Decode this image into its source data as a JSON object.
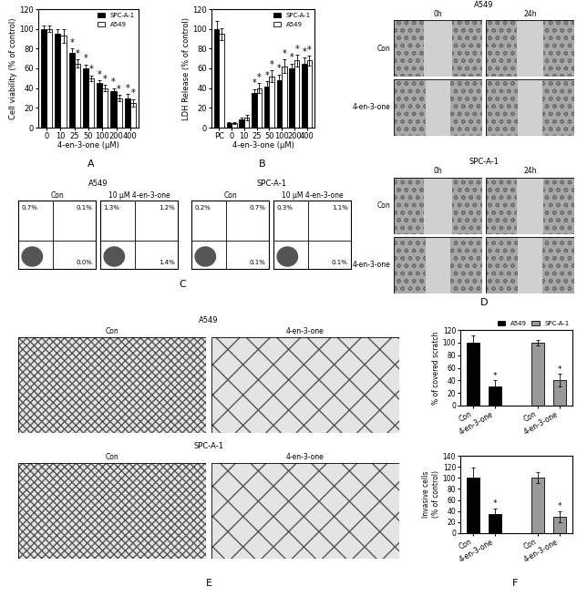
{
  "chart_data": [
    {
      "type": "bar",
      "panel_label": "A",
      "ylabel": "Cell viability (% of control)",
      "xlabel": "4-en-3-one (μM)",
      "categories": [
        "0",
        "10",
        "25",
        "50",
        "100",
        "200",
        "400"
      ],
      "ylim": [
        0,
        120
      ],
      "yticks": [
        0,
        20,
        40,
        60,
        80,
        100,
        120
      ],
      "legend": "upper right",
      "series": [
        {
          "name": "SPC-A-1",
          "color": "#000000",
          "values": [
            100,
            95,
            76,
            60,
            45,
            37,
            30
          ],
          "errors": [
            3,
            5,
            4,
            4,
            3,
            3,
            4
          ],
          "annotations": [
            null,
            null,
            "*",
            "*",
            "*",
            "*",
            "*"
          ]
        },
        {
          "name": "A549",
          "color": "#ffffff",
          "values": [
            100,
            93,
            65,
            50,
            40,
            30,
            25
          ],
          "errors": [
            3,
            7,
            4,
            3,
            3,
            3,
            4
          ],
          "annotations": [
            null,
            null,
            "*",
            "*",
            "*",
            "*",
            "*"
          ]
        }
      ]
    },
    {
      "type": "bar",
      "panel_label": "B",
      "ylabel": "LDH Release (% of control)",
      "xlabel": "4-en-3-one (μM)",
      "categories": [
        "PC",
        "0",
        "10",
        "25",
        "50",
        "100",
        "200",
        "400"
      ],
      "ylim": [
        0,
        120
      ],
      "yticks": [
        0,
        20,
        40,
        60,
        80,
        100,
        120
      ],
      "legend": "upper right",
      "series": [
        {
          "name": "SPC-A-1",
          "color": "#000000",
          "values": [
            100,
            5,
            8,
            35,
            42,
            48,
            60,
            65
          ],
          "errors": [
            8,
            1,
            2,
            4,
            5,
            6,
            5,
            6
          ],
          "annotations": [
            null,
            null,
            null,
            "*",
            "*",
            "*",
            "*",
            "*"
          ]
        },
        {
          "name": "A549",
          "color": "#ffffff",
          "values": [
            95,
            5,
            10,
            40,
            52,
            62,
            68,
            68
          ],
          "errors": [
            6,
            1,
            3,
            5,
            6,
            7,
            6,
            5
          ],
          "annotations": [
            null,
            null,
            null,
            "*",
            "*",
            "*",
            "*",
            "*"
          ]
        }
      ]
    },
    {
      "type": "bar",
      "panel_label": "F",
      "ylabel": "% of covered scratch",
      "categories": [
        "Con",
        "4-en-3-one",
        null,
        "Con",
        "4-en-3-one"
      ],
      "ylim": [
        0,
        120
      ],
      "yticks": [
        0,
        20,
        40,
        60,
        80,
        100,
        120
      ],
      "legend": "upper right",
      "series": [
        {
          "name": "A549",
          "color": "#000000",
          "values": [
            100,
            30,
            null,
            null,
            null
          ],
          "errors": [
            12,
            10,
            null,
            null,
            null
          ],
          "annotations": [
            null,
            "*",
            null,
            null,
            null
          ]
        },
        {
          "name": "SPC-A-1",
          "color": "#999999",
          "values": [
            null,
            null,
            null,
            100,
            40
          ],
          "errors": [
            null,
            null,
            null,
            4,
            10
          ],
          "annotations": [
            null,
            null,
            null,
            null,
            "*"
          ]
        }
      ]
    },
    {
      "type": "bar",
      "ylabel": "Invasive cells\n(% of control)",
      "categories": [
        "Con",
        "4-en-3-one",
        null,
        "Con",
        "4-en-3-one"
      ],
      "ylim": [
        0,
        140
      ],
      "yticks": [
        0,
        20,
        40,
        60,
        80,
        100,
        120,
        140
      ],
      "values": [
        100,
        35,
        null,
        100,
        30
      ],
      "colors": [
        "#000000",
        "#000000",
        "#999999",
        "#999999",
        "#999999"
      ],
      "errors": [
        18,
        10,
        null,
        10,
        10
      ],
      "annotations": [
        null,
        "*",
        null,
        null,
        "*"
      ]
    }
  ],
  "flow_cytometry": {
    "panel_label": "C",
    "groups": [
      {
        "title": "A549",
        "plots": [
          {
            "title": "Con",
            "upper_left": "0.7%",
            "upper_right": "0.1%",
            "lower_right": "0.0%"
          },
          {
            "title": "10 μM 4-en-3-one",
            "upper_left": "1.3%",
            "upper_right": "1.2%",
            "lower_right": "1.4%"
          }
        ]
      },
      {
        "title": "SPC-A-1",
        "plots": [
          {
            "title": "Con",
            "upper_left": "0.2%",
            "upper_right": "0.7%",
            "lower_right": "0.1%"
          },
          {
            "title": "10 μM 4-en-3-one",
            "upper_left": "0.3%",
            "upper_right": "1.1%",
            "lower_right": "0.1%"
          }
        ]
      }
    ]
  },
  "wound_healing": {
    "panel_label": "D",
    "groups": [
      {
        "title": "A549",
        "columns": [
          "0h",
          "24h"
        ],
        "rows": [
          "Con",
          "4-en-3-one"
        ]
      },
      {
        "title": "SPC-A-1",
        "columns": [
          "0h",
          "24h"
        ],
        "rows": [
          "Con",
          "4-en-3-one"
        ]
      }
    ]
  },
  "invasion": {
    "panel_label": "E",
    "groups": [
      {
        "title": "A549",
        "columns": [
          "Con",
          "4-en-3-one"
        ]
      },
      {
        "title": "SPC-A-1",
        "columns": [
          "Con",
          "4-en-3-one"
        ]
      }
    ]
  }
}
